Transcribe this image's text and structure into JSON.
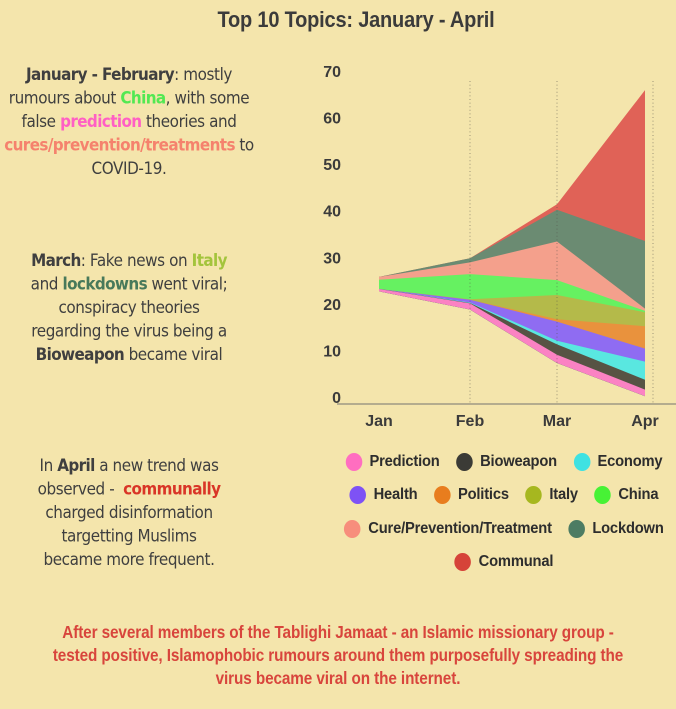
{
  "title": "Top 10 Topics: January - April",
  "colors": {
    "background": "#f4e5ac",
    "text_dark": "#3f3f3f",
    "footer_red": "#d8453c",
    "axis": "#8d8b7c"
  },
  "annotations": [
    {
      "key": "jan-feb",
      "lines": [
        [
          {
            "t": "January - February",
            "b": 1
          },
          {
            "t": ": mostly"
          }
        ],
        [
          {
            "t": "rumours about "
          },
          {
            "t": "China",
            "b": 1,
            "c": "#52e852",
            "k": "china"
          },
          {
            "t": ", with some"
          }
        ],
        [
          {
            "t": "false "
          },
          {
            "t": "prediction",
            "b": 1,
            "c": "#ff5fc4",
            "k": "prediction"
          },
          {
            "t": " theories and"
          }
        ],
        [
          {
            "t": "cures/prevention/treatments",
            "b": 1,
            "c": "#f5826d",
            "k": "cure"
          },
          {
            "t": " to"
          }
        ],
        [
          {
            "t": "COVID-19."
          }
        ]
      ]
    },
    {
      "key": "march",
      "lines": [
        [
          {
            "t": "March",
            "b": 1
          },
          {
            "t": ": Fake news on "
          },
          {
            "t": "Italy",
            "b": 1,
            "c": "#a3c43c",
            "k": "italy"
          }
        ],
        [
          {
            "t": "and "
          },
          {
            "t": "lockdowns",
            "b": 1,
            "c": "#48795a",
            "k": "lockdown"
          },
          {
            "t": " went viral;"
          }
        ],
        [
          {
            "t": "conspiracy theories"
          }
        ],
        [
          {
            "t": "regarding the virus being a"
          }
        ],
        [
          {
            "t": "Bioweapon",
            "b": 1
          },
          {
            "t": " became viral"
          }
        ]
      ]
    },
    {
      "key": "april",
      "lines": [
        [
          {
            "t": "In "
          },
          {
            "t": "April",
            "b": 1
          },
          {
            "t": " a new trend was"
          }
        ],
        [
          {
            "t": "observed -  "
          },
          {
            "t": "communally",
            "b": 1,
            "c": "#d93527",
            "k": "communal"
          }
        ],
        [
          {
            "t": "charged disinformation"
          }
        ],
        [
          {
            "t": "targetting Muslims"
          }
        ],
        [
          {
            "t": "became more frequent."
          }
        ]
      ]
    }
  ],
  "chart_data": {
    "type": "area",
    "variant": "streamgraph",
    "x": [
      "Jan",
      "Feb",
      "Mar",
      "Apr"
    ],
    "ylim": [
      0,
      70
    ],
    "yticks": [
      0,
      10,
      20,
      30,
      40,
      50,
      60,
      70
    ],
    "grid_x": [
      "Feb",
      "Mar"
    ],
    "baseline_offset": [
      22.8,
      18.9,
      7.4,
      0.3
    ],
    "series": [
      {
        "name": "Prediction",
        "color": "#fb82c3",
        "values": [
          0.5,
          1.3,
          1.8,
          1.4
        ]
      },
      {
        "name": "Bioweapon",
        "color": "#575344",
        "values": [
          0,
          0.1,
          2.2,
          2.1
        ]
      },
      {
        "name": "Economy",
        "color": "#59e7e0",
        "values": [
          0,
          0.1,
          0.8,
          3.9
        ]
      },
      {
        "name": "Health",
        "color": "#8f6cf2",
        "values": [
          0,
          0.6,
          4.1,
          2.8
        ]
      },
      {
        "name": "Politics",
        "color": "#e9923d",
        "values": [
          0,
          0,
          0.5,
          4.8
        ]
      },
      {
        "name": "Italy",
        "color": "#b4ba4a",
        "values": [
          0,
          0.1,
          5.2,
          3.0
        ]
      },
      {
        "name": "China",
        "color": "#66f161",
        "values": [
          2.0,
          5.4,
          3.2,
          0.3
        ]
      },
      {
        "name": "Cure/Prevention/Treatment",
        "color": "#f4a08c",
        "values": [
          0.6,
          2.5,
          8.3,
          0.5
        ]
      },
      {
        "name": "Lockdown",
        "color": "#6b8b72",
        "values": [
          0,
          0.9,
          6.8,
          14.5
        ]
      },
      {
        "name": "Communal",
        "color": "#e06257",
        "values": [
          0,
          0,
          1.2,
          32.4
        ]
      }
    ]
  },
  "legend": {
    "rows": [
      [
        {
          "label": "Prediction",
          "color": "#ff6ec0"
        },
        {
          "label": "Bioweapon",
          "color": "#3b3b36"
        },
        {
          "label": "Economy",
          "color": "#3fe2e2"
        }
      ],
      [
        {
          "label": "Health",
          "color": "#7e52f5"
        },
        {
          "label": "Politics",
          "color": "#e87d1e"
        },
        {
          "label": "Italy",
          "color": "#a6b71f"
        },
        {
          "label": "China",
          "color": "#47f235"
        }
      ],
      [
        {
          "label": "Cure/Prevention/Treatment",
          "color": "#f78e7c"
        },
        {
          "label": "Lockdown",
          "color": "#4d7c63"
        }
      ],
      [
        {
          "label": "Communal",
          "color": "#d64339"
        }
      ]
    ]
  },
  "footer_lines": [
    "After several members of the Tablighi Jamaat - an Islamic missionary group -",
    "tested positive, Islamophobic rumours around them purposefully spreading the",
    "virus became viral on the internet."
  ]
}
